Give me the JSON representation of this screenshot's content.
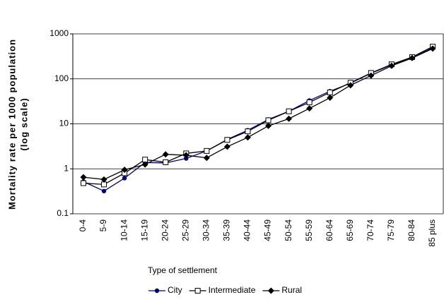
{
  "chart_data": {
    "type": "line",
    "log_scale": true,
    "grid": true,
    "y_label": [
      "Mortality rate per 1000 population",
      "(log scale)"
    ],
    "x_label": "Type of settlement",
    "legend_position": "bottom",
    "categories": [
      "0-4",
      "5-9",
      "10-14",
      "15-19",
      "20-24",
      "25-29",
      "30-34",
      "35-39",
      "40-44",
      "45-49",
      "50-54",
      "55-59",
      "60-64",
      "65-69",
      "70-74",
      "75-79",
      "80-84",
      "85 plus"
    ],
    "ylim": [
      0.1,
      1000
    ],
    "yticks": [
      0.1,
      1,
      10,
      100,
      1000
    ],
    "series": [
      {
        "name": "City",
        "color": "#000080",
        "marker": "circle",
        "values": [
          0.52,
          0.32,
          0.62,
          1.38,
          1.35,
          1.7,
          2.5,
          4.5,
          7.2,
          12.5,
          19,
          33,
          53,
          80,
          133,
          205,
          295,
          490
        ]
      },
      {
        "name": "Intermediate",
        "color": "#000000",
        "marker": "square",
        "values": [
          0.48,
          0.45,
          0.8,
          1.6,
          1.4,
          2.2,
          2.5,
          4.4,
          6.8,
          12,
          19,
          30,
          50,
          82,
          135,
          210,
          305,
          520
        ]
      },
      {
        "name": "Rural",
        "color": "#000000",
        "marker": "diamond",
        "values": [
          0.65,
          0.58,
          0.95,
          1.25,
          2.1,
          2.0,
          1.75,
          3.1,
          5,
          9,
          13,
          22,
          38,
          72,
          118,
          195,
          290,
          470
        ]
      }
    ]
  }
}
